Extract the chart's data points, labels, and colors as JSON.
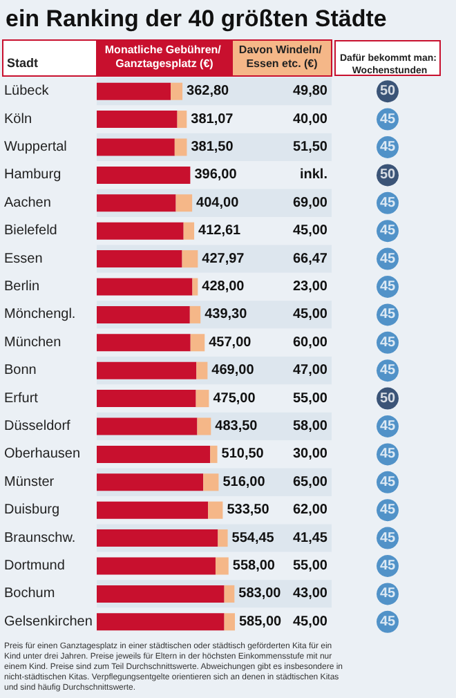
{
  "chart_data": [
    {
      "type": "bar",
      "title": "ein Ranking der 40 größten Städte",
      "ylabel": "Stadt",
      "orientation": "horizontal",
      "stacked": true,
      "tick_labels": "y",
      "categories": [
        "Lübeck",
        "Köln",
        "Wuppertal",
        "Hamburg",
        "Aachen",
        "Bielefeld",
        "Essen",
        "Berlin",
        "Mönchengl.",
        "München",
        "Bonn",
        "Erfurt",
        "Düsseldorf",
        "Oberhausen",
        "Münster",
        "Duisburg",
        "Braunschw.",
        "Dortmund",
        "Bochum",
        "Gelsenkirchen"
      ],
      "series": [
        {
          "name": "Monatliche Gebühren/ Ganztagesplatz (€)",
          "color": "#c8102e",
          "values": [
            313.0,
            341.07,
            330.0,
            396.0,
            335.0,
            367.61,
            361.5,
            405.0,
            394.3,
            397.0,
            422.0,
            420.0,
            425.5,
            480.5,
            451.0,
            471.5,
            513.0,
            503.0,
            540.0,
            540.0
          ]
        },
        {
          "name": "Davon Windeln/ Essen etc. (€)",
          "color": "#f5b788",
          "values": [
            49.8,
            40.0,
            51.5,
            null,
            69.0,
            45.0,
            66.47,
            23.0,
            45.0,
            60.0,
            47.0,
            55.0,
            58.0,
            30.0,
            65.0,
            62.0,
            41.45,
            55.0,
            43.0,
            45.0
          ],
          "value_labels": [
            "49,80",
            "40,00",
            "51,50",
            "inkl.",
            "69,00",
            "45,00",
            "66,47",
            "23,00",
            "45,00",
            "60,00",
            "47,00",
            "55,00",
            "58,00",
            "30,00",
            "65,00",
            "62,00",
            "41,45",
            "55,00",
            "43,00",
            "45,00"
          ]
        }
      ],
      "totals": [
        "362,80",
        "381,07",
        "381,50",
        "396,00",
        "404,00",
        "412,61",
        "427,97",
        "428,00",
        "439,30",
        "457,00",
        "469,00",
        "475,00",
        "483,50",
        "510,50",
        "516,00",
        "533,50",
        "554,45",
        "558,00",
        "583,00",
        "585,00"
      ],
      "annotations": [
        "Preis für einen Ganztagesplatz in einer städtischen oder städtisch geförderten Kita für ein Kind unter drei Jahren. Preise jeweils für Eltern in der höchsten Einkommensstufe mit nur einem Kind. Preise sind zum Teil Durchschnittswerte. Abweichungen gibt es insbesondere in nicht-städtischen Kitas. Verpflegungsentgelte orientieren sich an denen in städtischen Kitas und sind häufig Durchschnittswerte."
      ]
    },
    {
      "type": "other",
      "title": "Dafür bekommt man: Wochenstunden",
      "data_labels": true,
      "values": [
        50,
        45,
        45,
        50,
        45,
        45,
        45,
        45,
        45,
        45,
        45,
        50,
        45,
        45,
        45,
        45,
        45,
        45,
        45,
        45
      ],
      "colors": [
        "#0f2d57",
        "#2b7bbd",
        "#2b7bbd",
        "#0f2d57",
        "#2b7bbd",
        "#2b7bbd",
        "#2b7bbd",
        "#2b7bbd",
        "#2b7bbd",
        "#2b7bbd",
        "#2b7bbd",
        "#0f2d57",
        "#2b7bbd",
        "#2b7bbd",
        "#2b7bbd",
        "#2b7bbd",
        "#2b7bbd",
        "#2b7bbd",
        "#2b7bbd",
        "#2b7bbd"
      ]
    }
  ]
}
